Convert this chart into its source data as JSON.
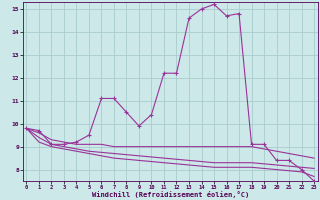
{
  "xlabel": "Windchill (Refroidissement éolien,°C)",
  "x": [
    0,
    1,
    2,
    3,
    4,
    5,
    6,
    7,
    8,
    9,
    10,
    11,
    12,
    13,
    14,
    15,
    16,
    17,
    18,
    19,
    20,
    21,
    22,
    23
  ],
  "line1": [
    9.8,
    9.7,
    9.1,
    9.1,
    9.2,
    9.5,
    11.1,
    11.1,
    10.5,
    9.9,
    10.4,
    12.2,
    12.2,
    14.6,
    15.0,
    15.2,
    14.7,
    14.8,
    9.1,
    9.1,
    8.4,
    8.4,
    8.0,
    7.5
  ],
  "line2": [
    9.8,
    9.6,
    9.3,
    9.2,
    9.1,
    9.1,
    9.1,
    9.0,
    9.0,
    9.0,
    9.0,
    9.0,
    9.0,
    9.0,
    9.0,
    9.0,
    9.0,
    9.0,
    9.0,
    8.9,
    8.8,
    8.7,
    8.6,
    8.5
  ],
  "line3": [
    9.8,
    9.4,
    9.1,
    9.0,
    8.9,
    8.8,
    8.75,
    8.7,
    8.65,
    8.6,
    8.55,
    8.5,
    8.45,
    8.4,
    8.35,
    8.3,
    8.3,
    8.3,
    8.3,
    8.25,
    8.2,
    8.15,
    8.1,
    8.05
  ],
  "line4": [
    9.8,
    9.2,
    9.0,
    8.9,
    8.8,
    8.7,
    8.6,
    8.5,
    8.45,
    8.4,
    8.35,
    8.3,
    8.25,
    8.2,
    8.15,
    8.1,
    8.1,
    8.1,
    8.1,
    8.05,
    8.0,
    7.95,
    7.9,
    7.7
  ],
  "line_color": "#993399",
  "bg_color": "#cce8e8",
  "grid_color": "#aacccc",
  "ylim": [
    7.5,
    15.3
  ],
  "yticks": [
    8,
    9,
    10,
    11,
    12,
    13,
    14,
    15
  ],
  "xticks": [
    0,
    1,
    2,
    3,
    4,
    5,
    6,
    7,
    8,
    9,
    10,
    11,
    12,
    13,
    14,
    15,
    16,
    17,
    18,
    19,
    20,
    21,
    22,
    23
  ]
}
